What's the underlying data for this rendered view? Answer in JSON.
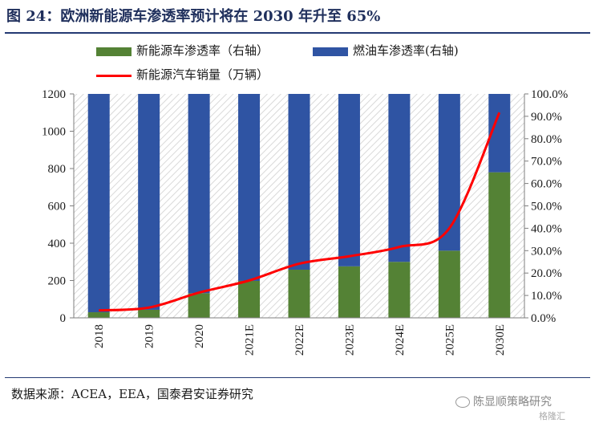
{
  "title": "图 24：欧洲新能源车渗透率预计将在 2030 年升至 65%",
  "source": "数据来源：ACEA，EEA，国泰君安证券研究",
  "watermark": "陈显顺策略研究",
  "watermark_logo": "格隆汇",
  "colors": {
    "nev_bar": "#548235",
    "fuel_bar": "#2f54a3",
    "sales_line": "#ff0000",
    "title": "#1f2f5c",
    "hatch": "#d9d9d9"
  },
  "legend": {
    "nev": "新能源车渗透率（右轴）",
    "fuel": "燃油车渗透率(右轴)",
    "sales": "新能源汽车销量（万辆）"
  },
  "chart_data": {
    "type": "bar",
    "stacked": true,
    "categories": [
      "2018",
      "2019",
      "2020",
      "2021E",
      "2022E",
      "2023E",
      "2024E",
      "2025E",
      "2030E"
    ],
    "series": [
      {
        "name": "新能源车渗透率（右轴）",
        "axis": "right",
        "type": "bar",
        "values": [
          2.5,
          3.6,
          11.0,
          16.5,
          21.5,
          23.0,
          25.0,
          30.0,
          65.0
        ]
      },
      {
        "name": "燃油车渗透率(右轴)",
        "axis": "right",
        "type": "bar",
        "values": [
          97.5,
          96.4,
          89.0,
          83.5,
          78.5,
          77.0,
          75.0,
          70.0,
          35.0
        ]
      },
      {
        "name": "新能源汽车销量（万辆）",
        "axis": "left",
        "type": "line",
        "values": [
          40,
          55,
          135,
          200,
          290,
          330,
          380,
          480,
          1100
        ]
      }
    ],
    "y_left": {
      "min": 0,
      "max": 1200,
      "ticks": [
        "0",
        "200",
        "400",
        "600",
        "800",
        "1000",
        "1200"
      ]
    },
    "y_right": {
      "min": 0,
      "max": 100,
      "ticks": [
        "0.0%",
        "10.0%",
        "20.0%",
        "30.0%",
        "40.0%",
        "50.0%",
        "60.0%",
        "70.0%",
        "80.0%",
        "90.0%",
        "100.0%"
      ]
    },
    "grid": false,
    "legend_position": "top"
  }
}
